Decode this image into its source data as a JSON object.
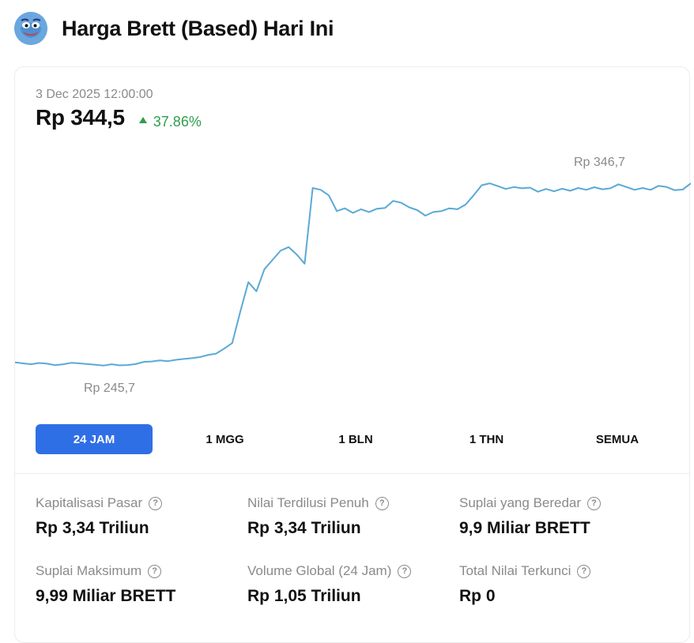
{
  "header": {
    "title": "Harga Brett (Based) Hari Ini",
    "logo_icon": "brett-logo-icon"
  },
  "price_panel": {
    "timestamp": "3 Dec 2025 12:00:00",
    "price": "Rp 344,5",
    "change": "37.86%",
    "change_direction": "up",
    "change_color": "#2e9e4e"
  },
  "chart_data": {
    "type": "line",
    "line_color": "#5aa9d6",
    "high_label": "Rp 346,7",
    "low_label": "Rp 245,7",
    "grid": false,
    "y": [
      247.5,
      247.0,
      246.5,
      247.2,
      246.8,
      246.0,
      246.5,
      247.3,
      247.0,
      246.6,
      246.2,
      245.8,
      246.5,
      245.9,
      246.1,
      246.6,
      247.8,
      248.0,
      248.6,
      248.2,
      248.9,
      249.4,
      249.8,
      250.4,
      251.5,
      252.3,
      255.0,
      258.0,
      275.0,
      291.0,
      286.0,
      298.0,
      303.0,
      308.0,
      310.0,
      306.0,
      301.0,
      342.0,
      341.0,
      338.0,
      329.5,
      331.0,
      328.5,
      330.5,
      329.0,
      330.8,
      331.2,
      335.0,
      334.0,
      331.5,
      330.0,
      327.0,
      329.0,
      329.5,
      331.0,
      330.5,
      333.0,
      338.0,
      343.5,
      344.5,
      343.0,
      341.5,
      342.5,
      341.8,
      342.2,
      340.0,
      341.5,
      340.2,
      341.6,
      340.5,
      342.0,
      341.0,
      342.4,
      341.3,
      341.8,
      344.0,
      342.5,
      341.0,
      342.0,
      341.0,
      343.2,
      342.5,
      340.8,
      341.2,
      344.5
    ]
  },
  "range_tabs": [
    {
      "label": "24 JAM",
      "active": true
    },
    {
      "label": "1 MGG",
      "active": false
    },
    {
      "label": "1 BLN",
      "active": false
    },
    {
      "label": "1 THN",
      "active": false
    },
    {
      "label": "SEMUA",
      "active": false
    }
  ],
  "stats": [
    {
      "label": "Kapitalisasi Pasar",
      "value": "Rp 3,34 Triliun"
    },
    {
      "label": "Nilai Terdilusi Penuh",
      "value": "Rp 3,34 Triliun"
    },
    {
      "label": "Suplai yang Beredar",
      "value": "9,9 Miliar BRETT"
    },
    {
      "label": "Suplai Maksimum",
      "value": "9,99 Miliar BRETT"
    },
    {
      "label": "Volume Global (24 Jam)",
      "value": "Rp 1,05 Triliun"
    },
    {
      "label": "Total Nilai Terkunci",
      "value": "Rp 0"
    }
  ],
  "help_icon_glyph": "?"
}
